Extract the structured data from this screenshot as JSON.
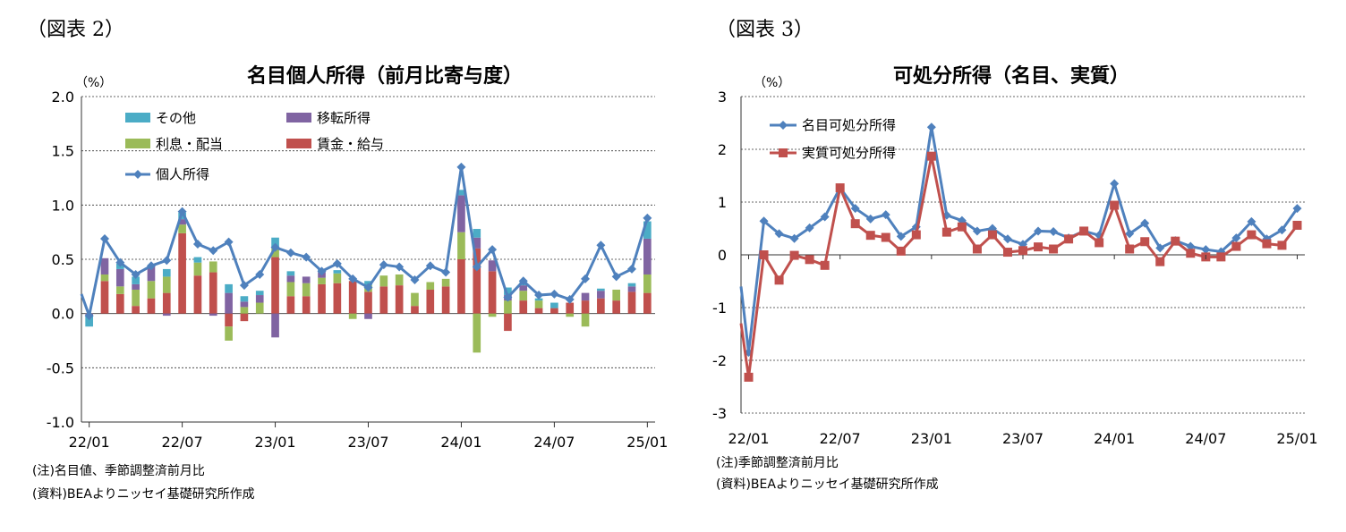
{
  "left": {
    "fig_label": "（図表 2）",
    "notes": [
      "(注)名目値、季節調整済前月比",
      "(資料)BEAよりニッセイ基礎研究所作成"
    ]
  },
  "right": {
    "fig_label": "（図表 3）",
    "notes": [
      "(注)季節調整済前月比",
      "(資料)BEAよりニッセイ基礎研究所作成"
    ]
  },
  "chart_data": [
    {
      "type": "bar",
      "stacked": true,
      "title": "名目個人所得（前月比寄与度）",
      "unit": "（%）",
      "ylim": [
        -1.0,
        2.0
      ],
      "yticks": [
        "2.0",
        "1.5",
        "1.0",
        "0.5",
        "0.0",
        "-0.5",
        "-1.0"
      ],
      "grid": true,
      "legend_position": "top-left",
      "x_tick_labels": [
        "22/01",
        "22/07",
        "23/01",
        "23/07",
        "24/01",
        "24/07",
        "25/01"
      ],
      "categories": [
        "22/01",
        "22/02",
        "22/03",
        "22/04",
        "22/05",
        "22/06",
        "22/07",
        "22/08",
        "22/09",
        "22/10",
        "22/11",
        "22/12",
        "23/01",
        "23/02",
        "23/03",
        "23/04",
        "23/05",
        "23/06",
        "23/07",
        "23/08",
        "23/09",
        "23/10",
        "23/11",
        "23/12",
        "24/01",
        "24/02",
        "24/03",
        "24/04",
        "24/05",
        "24/06",
        "24/07",
        "24/08",
        "24/09",
        "24/10",
        "24/11",
        "24/12",
        "25/01"
      ],
      "series": [
        {
          "name": "その他",
          "color": "#4BACC6",
          "kind": "bar",
          "values": [
            -0.1,
            0.0,
            0.05,
            0.07,
            0.0,
            0.07,
            0.06,
            0.05,
            0.0,
            0.08,
            0.05,
            0.04,
            0.1,
            0.04,
            0.0,
            0.03,
            0.03,
            0.0,
            0.04,
            0.0,
            0.0,
            0.0,
            0.0,
            0.0,
            0.05,
            0.08,
            0.0,
            0.07,
            0.03,
            0.02,
            0.05,
            0.0,
            0.0,
            0.02,
            0.0,
            0.03,
            0.16
          ]
        },
        {
          "name": "移転所得",
          "color": "#8064A2",
          "kind": "bar",
          "values": [
            -0.02,
            0.15,
            0.16,
            0.05,
            0.14,
            -0.02,
            0.05,
            0.0,
            -0.02,
            0.19,
            0.05,
            0.07,
            -0.22,
            0.06,
            0.06,
            0.05,
            0.0,
            0.0,
            -0.05,
            0.0,
            0.0,
            0.0,
            0.0,
            0.0,
            0.34,
            0.1,
            0.1,
            0.05,
            0.05,
            0.0,
            0.0,
            0.0,
            0.07,
            0.07,
            0.0,
            0.05,
            0.33
          ]
        },
        {
          "name": "利息・配当",
          "color": "#9BBB59",
          "kind": "bar",
          "values": [
            0.0,
            0.06,
            0.07,
            0.15,
            0.16,
            0.15,
            0.08,
            0.12,
            0.1,
            -0.13,
            0.06,
            0.1,
            0.08,
            0.13,
            0.12,
            0.06,
            0.09,
            -0.05,
            0.06,
            0.1,
            0.1,
            0.12,
            0.07,
            0.07,
            0.25,
            -0.36,
            -0.03,
            0.12,
            0.09,
            0.07,
            0.0,
            -0.03,
            -0.12,
            0.0,
            0.1,
            0.0,
            0.17
          ]
        },
        {
          "name": "賃金・給与",
          "color": "#C0504D",
          "kind": "bar",
          "values": [
            0.0,
            0.3,
            0.18,
            0.07,
            0.14,
            0.19,
            0.74,
            0.35,
            0.38,
            -0.12,
            -0.07,
            0.0,
            0.52,
            0.16,
            0.16,
            0.27,
            0.28,
            0.3,
            0.2,
            0.25,
            0.26,
            0.07,
            0.22,
            0.25,
            0.5,
            0.6,
            0.39,
            -0.16,
            0.12,
            0.05,
            0.05,
            0.1,
            0.12,
            0.14,
            0.12,
            0.2,
            0.19
          ]
        },
        {
          "name": "個人所得",
          "color": "#4F81BD",
          "kind": "line",
          "marker": "diamond",
          "values": [
            -0.02,
            0.69,
            0.47,
            0.36,
            0.44,
            0.49,
            0.94,
            0.64,
            0.58,
            0.66,
            0.26,
            0.36,
            0.61,
            0.56,
            0.52,
            0.39,
            0.46,
            0.32,
            0.24,
            0.45,
            0.43,
            0.31,
            0.44,
            0.38,
            1.35,
            0.43,
            0.59,
            0.15,
            0.3,
            0.17,
            0.18,
            0.13,
            0.32,
            0.63,
            0.34,
            0.41,
            0.88
          ]
        }
      ]
    },
    {
      "type": "line",
      "title": "可処分所得（名目、実質）",
      "unit": "（%）",
      "ylim": [
        -3,
        3
      ],
      "yticks": [
        "3",
        "2",
        "1",
        "0",
        "-1",
        "-2",
        "-3"
      ],
      "grid": true,
      "legend_position": "top-left",
      "x_tick_labels": [
        "22/01",
        "22/07",
        "23/01",
        "23/07",
        "24/01",
        "24/07",
        "25/01"
      ],
      "categories": [
        "22/01",
        "22/02",
        "22/03",
        "22/04",
        "22/05",
        "22/06",
        "22/07",
        "22/08",
        "22/09",
        "22/10",
        "22/11",
        "22/12",
        "23/01",
        "23/02",
        "23/03",
        "23/04",
        "23/05",
        "23/06",
        "23/07",
        "23/08",
        "23/09",
        "23/10",
        "23/11",
        "23/12",
        "24/01",
        "24/02",
        "24/03",
        "24/04",
        "24/05",
        "24/06",
        "24/07",
        "24/08",
        "24/09",
        "24/10",
        "24/11",
        "24/12",
        "25/01"
      ],
      "series": [
        {
          "name": "名目可処分所得",
          "color": "#4F81BD",
          "marker": "diamond",
          "values": [
            -1.85,
            0.64,
            0.4,
            0.31,
            0.51,
            0.72,
            1.27,
            0.88,
            0.68,
            0.76,
            0.35,
            0.53,
            2.42,
            0.75,
            0.65,
            0.45,
            0.5,
            0.3,
            0.2,
            0.45,
            0.44,
            0.32,
            0.45,
            0.37,
            1.35,
            0.4,
            0.6,
            0.13,
            0.27,
            0.16,
            0.1,
            0.06,
            0.32,
            0.63,
            0.3,
            0.47,
            0.88
          ]
        },
        {
          "name": "実質可処分所得",
          "color": "#C0504D",
          "marker": "square",
          "values": [
            -2.32,
            0.0,
            -0.48,
            -0.01,
            -0.09,
            -0.2,
            1.27,
            0.59,
            0.37,
            0.33,
            0.07,
            0.38,
            1.87,
            0.43,
            0.53,
            0.11,
            0.38,
            0.05,
            0.08,
            0.15,
            0.11,
            0.3,
            0.45,
            0.23,
            0.94,
            0.11,
            0.25,
            -0.13,
            0.26,
            0.03,
            -0.04,
            -0.04,
            0.16,
            0.38,
            0.21,
            0.18,
            0.56
          ]
        }
      ]
    }
  ]
}
